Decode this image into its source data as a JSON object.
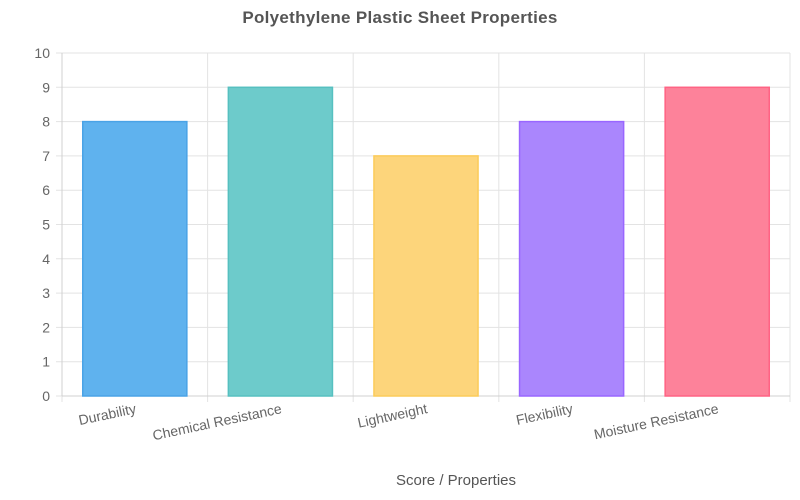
{
  "chart_data": {
    "type": "bar",
    "title": "Polyethylene Plastic Sheet Properties",
    "xlabel": "Score / Properties",
    "ylabel": "",
    "categories": [
      "Durability",
      "Chemical Resistance",
      "Lightweight",
      "Flexibility",
      "Moisture Resistance"
    ],
    "values": [
      8,
      9,
      7,
      8,
      9
    ],
    "ylim": [
      0,
      10
    ],
    "yticks": [
      "0",
      "1",
      "2",
      "3",
      "4",
      "5",
      "6",
      "7",
      "8",
      "9",
      "10"
    ],
    "grid": true,
    "legend": "none",
    "colors": {
      "fills": [
        "#5fb2ee",
        "#6dcbcb",
        "#fdd57b",
        "#aa86fd",
        "#fd829a"
      ],
      "borders": [
        "#4aa3e6",
        "#56c0c0",
        "#fccc5a",
        "#9966ff",
        "#ff6384"
      ]
    }
  }
}
